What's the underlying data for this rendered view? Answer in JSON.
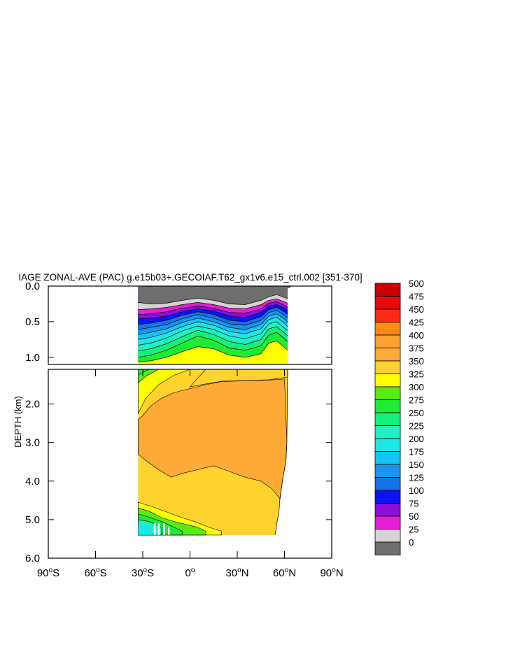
{
  "chart_data": {
    "type": "contour",
    "title": "IAGE ZONAL-AVE (PAC) g.e15b03+.GECOIAF.T62_gx1v6.e15_ctrl.002 [351-370]",
    "ylabel": "DEPTH (km)",
    "xlabel": "",
    "xlim": [
      -90,
      90
    ],
    "ylim_upper_panel": [
      0.0,
      1.1
    ],
    "ylim_lower_panel": [
      1.1,
      6.0
    ],
    "x_ticks": [
      {
        "value": -90,
        "deg": "90",
        "hemi": "S"
      },
      {
        "value": -60,
        "deg": "60",
        "hemi": "S"
      },
      {
        "value": -30,
        "deg": "30",
        "hemi": "S"
      },
      {
        "value": 0,
        "deg": "0",
        "hemi": ""
      },
      {
        "value": 30,
        "deg": "30",
        "hemi": "N"
      },
      {
        "value": 60,
        "deg": "60",
        "hemi": "N"
      },
      {
        "value": 90,
        "deg": "90",
        "hemi": "N"
      }
    ],
    "y_ticks_upper": [
      {
        "value": 0.0,
        "label": "0.0"
      },
      {
        "value": 0.5,
        "label": "0.5"
      },
      {
        "value": 1.0,
        "label": "1.0"
      }
    ],
    "y_ticks_lower": [
      {
        "value": 2.0,
        "label": "2.0"
      },
      {
        "value": 3.0,
        "label": "3.0"
      },
      {
        "value": 4.0,
        "label": "4.0"
      },
      {
        "value": 5.0,
        "label": "5.0"
      },
      {
        "value": 6.0,
        "label": "6.0"
      }
    ],
    "data_extent": {
      "lon_min": -33,
      "lon_max": 62,
      "max_depth": 5.4
    },
    "contour_levels": [
      0,
      25,
      50,
      75,
      100,
      125,
      150,
      175,
      200,
      225,
      250,
      275,
      300,
      325,
      350,
      375,
      400,
      425,
      450,
      475,
      500
    ],
    "level_colors": [
      "#6e6e6e",
      "#d4d4d4",
      "#e61ed8",
      "#8c0fd8",
      "#0a14f5",
      "#1473e6",
      "#1496f0",
      "#16c3f2",
      "#1ee6e6",
      "#1ef0c3",
      "#14f07a",
      "#1eeb32",
      "#5aeb14",
      "#ffff00",
      "#ffd22d",
      "#ffaa37",
      "#ffa032",
      "#ff8a14",
      "#ff2814",
      "#eb0a0a",
      "#c80000"
    ],
    "upper_profile": {
      "lon": [
        -33,
        -25,
        -15,
        -5,
        5,
        15,
        25,
        35,
        45,
        50,
        55,
        60,
        62
      ],
      "bottom_of_band_km": [
        [
          0.23,
          0.25,
          0.24,
          0.2,
          0.17,
          0.2,
          0.25,
          0.26,
          0.2,
          0.15,
          0.12,
          0.16,
          0.18
        ],
        [
          0.33,
          0.32,
          0.3,
          0.26,
          0.23,
          0.26,
          0.31,
          0.32,
          0.26,
          0.2,
          0.18,
          0.22,
          0.24
        ],
        [
          0.4,
          0.39,
          0.36,
          0.31,
          0.28,
          0.31,
          0.37,
          0.38,
          0.32,
          0.24,
          0.22,
          0.27,
          0.3
        ],
        [
          0.46,
          0.45,
          0.42,
          0.36,
          0.32,
          0.35,
          0.42,
          0.44,
          0.37,
          0.28,
          0.26,
          0.31,
          0.34
        ],
        [
          0.54,
          0.52,
          0.48,
          0.41,
          0.36,
          0.4,
          0.48,
          0.5,
          0.43,
          0.33,
          0.3,
          0.36,
          0.4
        ],
        [
          0.61,
          0.58,
          0.54,
          0.46,
          0.4,
          0.45,
          0.53,
          0.55,
          0.48,
          0.37,
          0.34,
          0.41,
          0.45
        ],
        [
          0.68,
          0.65,
          0.6,
          0.51,
          0.45,
          0.5,
          0.58,
          0.61,
          0.54,
          0.42,
          0.39,
          0.46,
          0.51
        ],
        [
          0.75,
          0.72,
          0.66,
          0.57,
          0.5,
          0.55,
          0.64,
          0.67,
          0.6,
          0.47,
          0.44,
          0.52,
          0.57
        ],
        [
          0.83,
          0.8,
          0.73,
          0.63,
          0.56,
          0.61,
          0.7,
          0.74,
          0.67,
          0.53,
          0.5,
          0.59,
          0.63
        ],
        [
          0.91,
          0.88,
          0.81,
          0.71,
          0.62,
          0.68,
          0.78,
          0.82,
          0.75,
          0.6,
          0.57,
          0.66,
          0.7
        ],
        [
          1.0,
          0.97,
          0.9,
          0.8,
          0.7,
          0.76,
          0.87,
          0.9,
          0.84,
          0.69,
          0.65,
          0.74,
          0.78
        ],
        [
          1.06,
          1.05,
          1.0,
          0.92,
          0.85,
          0.88,
          0.97,
          1.0,
          0.95,
          0.8,
          0.77,
          0.86,
          0.9
        ]
      ]
    },
    "deep_regions": [
      {
        "level": 325,
        "region": "shallowest deep layer, southern flank to ~2.3 km"
      },
      {
        "level": 350,
        "region": "envelope 1.1 to ~5 km"
      },
      {
        "level": 375,
        "region": "core 1.5 to ~4.5 km, 30S to 60N"
      },
      {
        "level": 300,
        "region": "near bottom south of 25N"
      },
      {
        "level": 250,
        "region": "bottom water south of 5S"
      }
    ]
  }
}
